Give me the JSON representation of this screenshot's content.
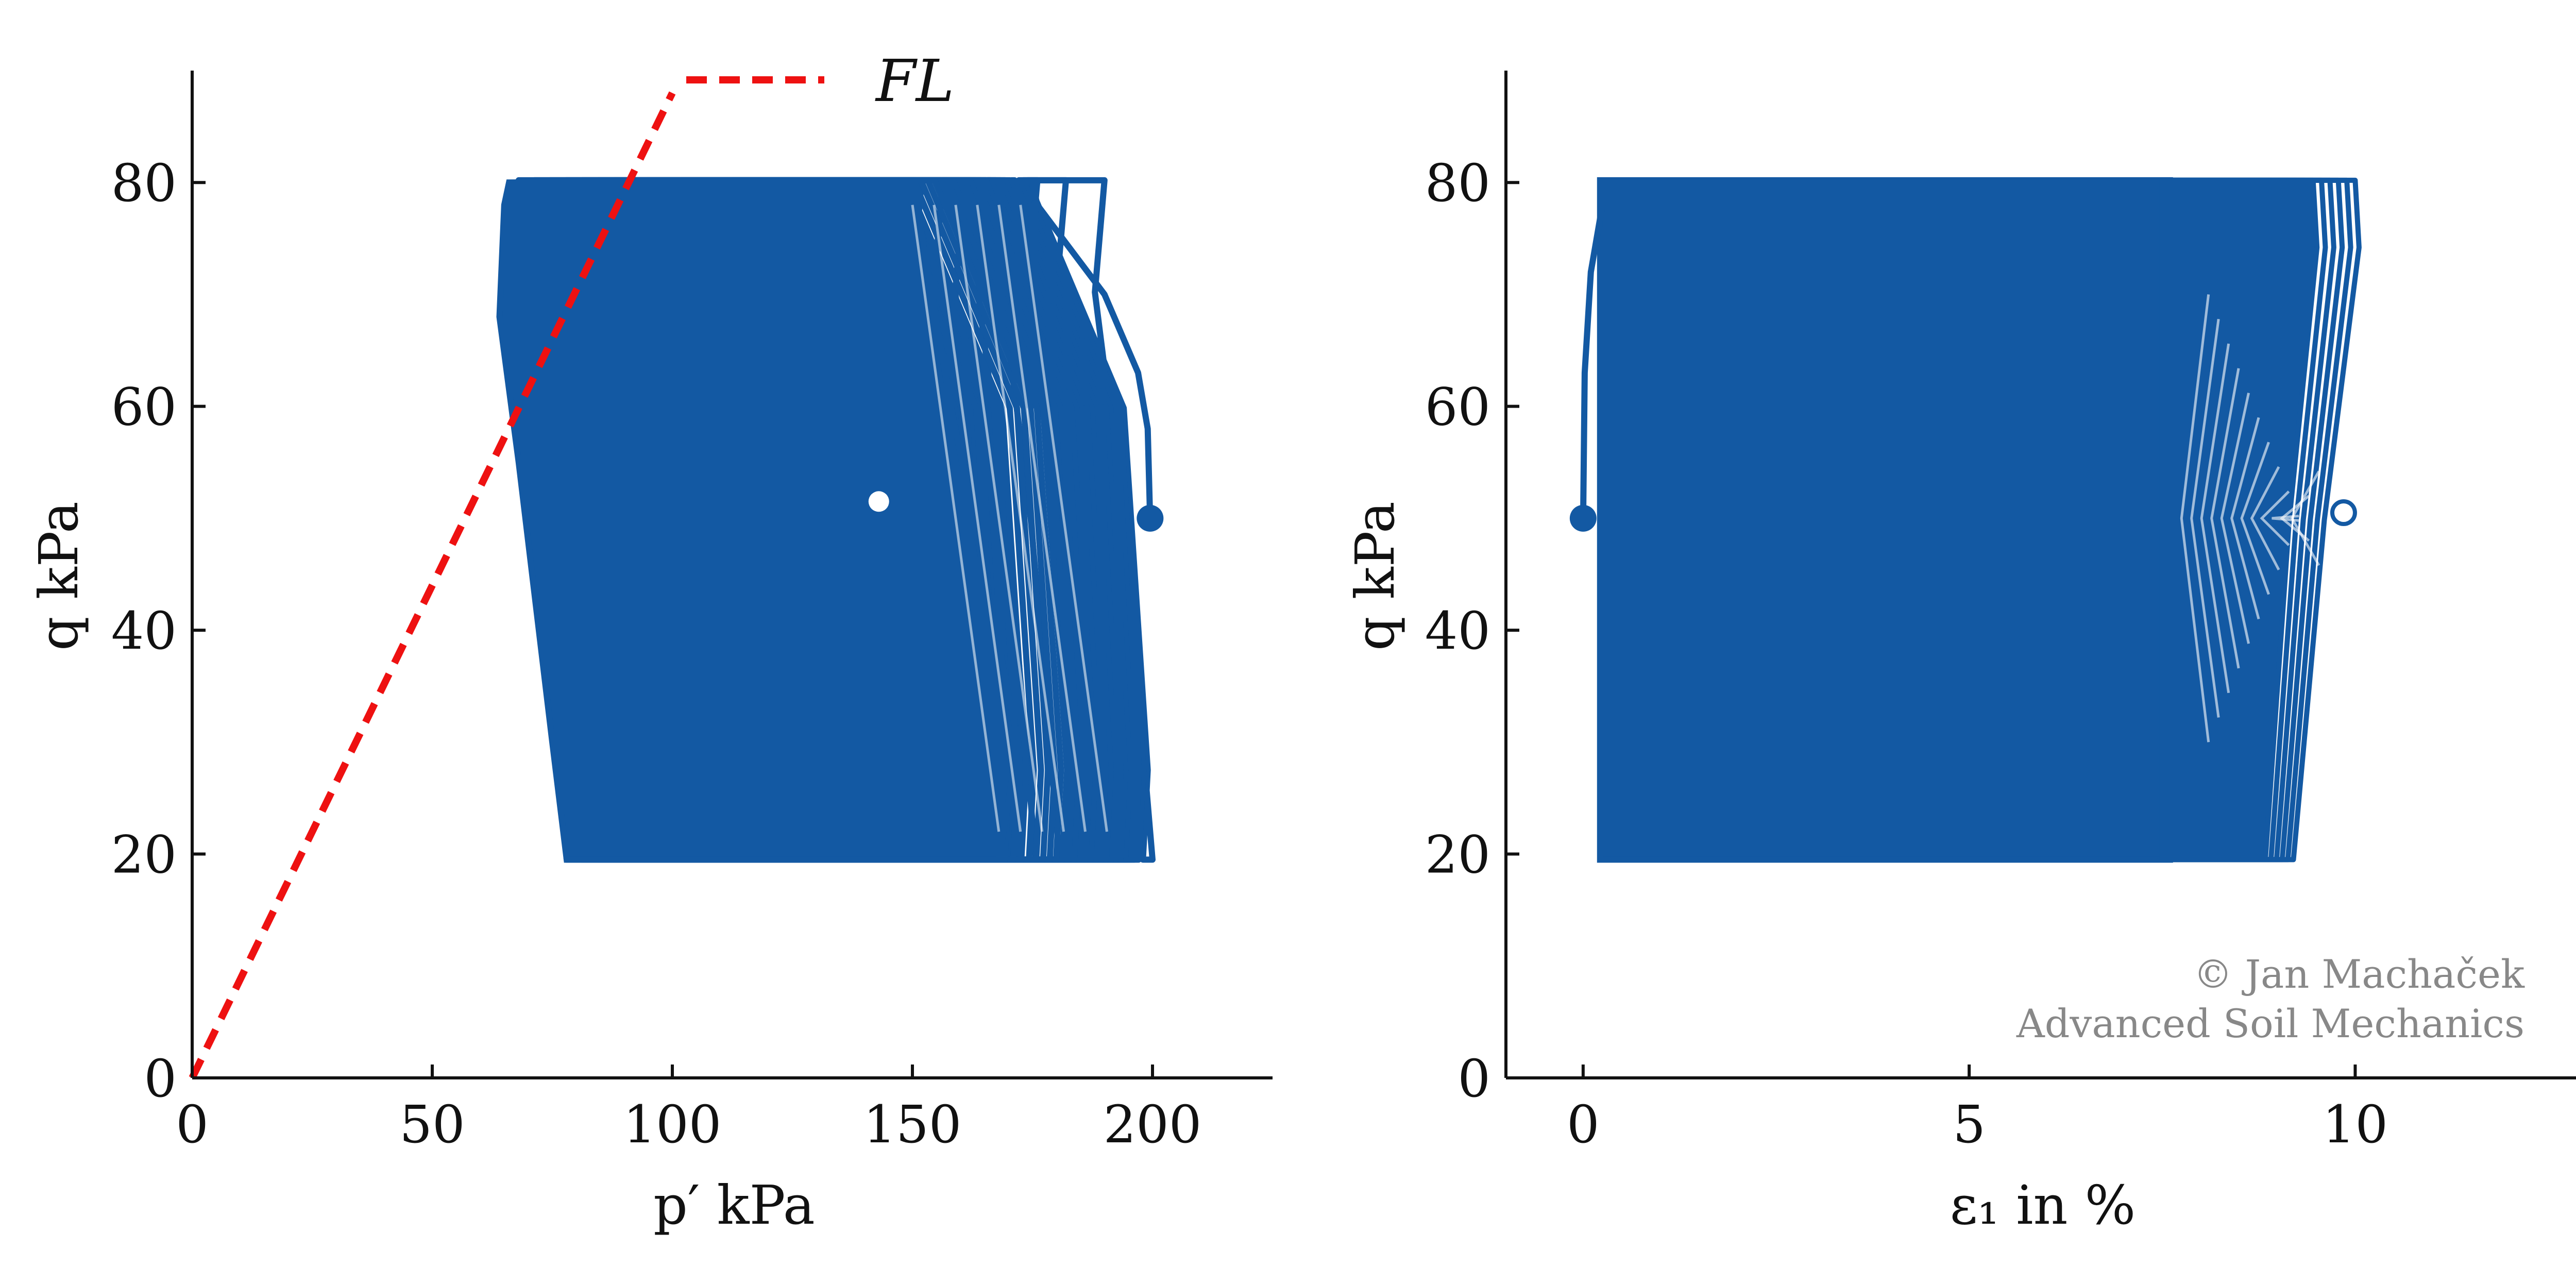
{
  "colors": {
    "series": "#1359a3",
    "failure_line": "#ee1111",
    "axis": "#111111",
    "watermark": "#888888"
  },
  "chart_data": [
    {
      "type": "line",
      "xlabel": "p′ kPa",
      "ylabel": "q kPa",
      "xlim": [
        0,
        225
      ],
      "ylim": [
        0,
        90
      ],
      "xticks": [
        "0",
        "50",
        "100",
        "150",
        "200"
      ],
      "yticks": [
        "0",
        "20",
        "40",
        "60",
        "80"
      ],
      "grid": false,
      "legend": {
        "position": "top-center",
        "entries": [
          {
            "label": "FL",
            "style": "dashed",
            "color": "#ee1111"
          }
        ]
      },
      "failure_line": {
        "name": "FL",
        "x": [
          0,
          100
        ],
        "y": [
          0,
          88
        ]
      },
      "series": [
        {
          "kind": "cyclic-loading-band",
          "q_min": 19.5,
          "q_max": 80.2,
          "shrink_cycles": 30,
          "x_right_start": 199,
          "x_right_end": 150,
          "x_left_start": 188,
          "x_left_end": 66,
          "x_bottom_min": 78,
          "initial_path": {
            "x": [
              199.5,
              199,
              197,
              190,
              176,
              175
            ],
            "y": [
              50,
              58,
              63,
              70,
              78,
              80
            ]
          },
          "start_point": {
            "x": 199.5,
            "y": 50
          },
          "end_point": {
            "x": 143,
            "y": 51.5
          }
        }
      ]
    },
    {
      "type": "line",
      "xlabel": "ε₁ in %",
      "ylabel": "q kPa",
      "xlim": [
        -1,
        13
      ],
      "ylim": [
        0,
        90
      ],
      "xticks": [
        "0",
        "5",
        "10"
      ],
      "yticks": [
        "0",
        "20",
        "40",
        "60",
        "80"
      ],
      "grid": false,
      "series": [
        {
          "kind": "cyclic-loading-band",
          "q_min": 19.5,
          "q_max": 80.2,
          "band_left": 0.22,
          "band_right_top": 10.0,
          "band_right_bottom": 9.2,
          "separated_loops_from": 7.6,
          "initial_path": {
            "x": [
              0,
              0.02,
              0.1,
              0.25,
              0.4
            ],
            "y": [
              50,
              63,
              72,
              78,
              80
            ]
          },
          "start_point": {
            "x": 0,
            "y": 50
          },
          "end_point": {
            "x": 9.85,
            "y": 50.5
          }
        }
      ]
    }
  ],
  "watermark": {
    "line1": "© Jan Machaček",
    "line2": "Advanced Soil Mechanics"
  }
}
